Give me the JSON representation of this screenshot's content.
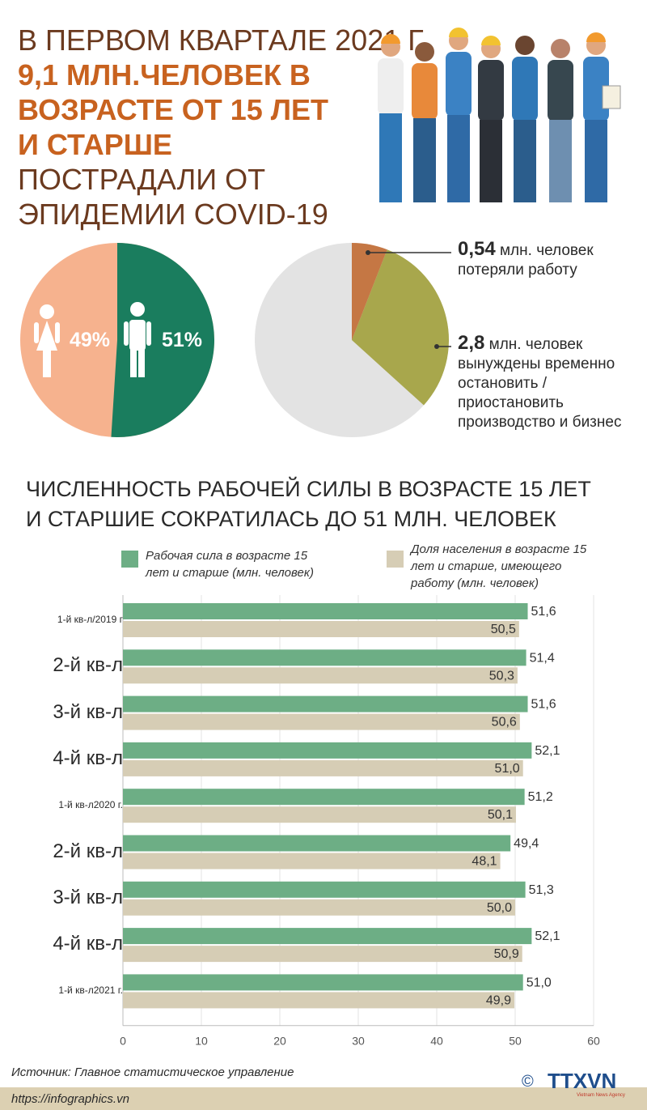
{
  "header": {
    "line1": "В ПЕРВОМ КВАРТАЛЕ 2021 Г.",
    "line2": "9,1 МЛН.ЧЕЛОВЕК В",
    "line3": "ВОЗРАСТЕ ОТ 15 ЛЕТ",
    "line4": "И СТАРШЕ",
    "line5": "ПОСТРАДАЛИ ОТ",
    "line6": "ЭПИДЕМИИ COVID-19"
  },
  "gender": {
    "female": "49%",
    "male": "51%",
    "female_color": "#f6b28e",
    "male_color": "#1a7d5e"
  },
  "impact": {
    "lost_value": "0,54",
    "lost_line1": " млн. человек",
    "lost_line2": "потеряли работу",
    "suspend_value": "2,8",
    "suspend_line1": " млн. человек",
    "suspend_line2": "вынуждены временно",
    "suspend_line3": "остановить /",
    "suspend_line4": "приостановить",
    "suspend_line5": "производство и бизнес",
    "colors": {
      "lost": "#c57744",
      "suspend": "#a8a74c",
      "rest": "#e3e3e3"
    }
  },
  "chart_title": {
    "line1": "ЧИСЛЕННОСТЬ РАБОЧЕЙ СИЛЫ В ВОЗРАСТЕ 15 ЛЕТ",
    "line2": "И СТАРШИЕ СОКРАТИЛАСЬ ДО 51 МЛН. ЧЕЛОВЕК"
  },
  "legend": {
    "a1": "Рабочая сила в возрасте 15",
    "a2": "лет и старше (млн. человек)",
    "b1": "Доля населения в возрасте 15",
    "b2": "лет и старше, имеющего",
    "b3": "работу (млн. человек)"
  },
  "chart_data": {
    "type": "bar",
    "orientation": "horizontal",
    "categories": [
      "1-й кв-л/2019 г",
      "2-й кв-л",
      "3-й кв-л",
      "4-й кв-л",
      "1-й кв-л2020 г.",
      "2-й кв-л",
      "3-й кв-л",
      "4-й кв-л",
      "1-й кв-л2021 г."
    ],
    "series": [
      {
        "name": "Рабочая сила в возрасте 15 лет и старше (млн. человек)",
        "color": "#6dae85",
        "values": [
          51.6,
          51.4,
          51.6,
          52.1,
          51.2,
          49.4,
          51.3,
          52.1,
          51.0
        ],
        "labels": [
          "51,6",
          "51,4",
          "51,6",
          "52,1",
          "51,2",
          "49,4",
          "51,3",
          "52,1",
          "51,0"
        ]
      },
      {
        "name": "Доля населения в возрасте 15 лет и старше, имеющего работу (млн. человек)",
        "color": "#d6cdb5",
        "values": [
          50.5,
          50.3,
          50.6,
          51.0,
          50.1,
          48.1,
          50.0,
          50.9,
          49.9
        ],
        "labels": [
          "50,5",
          "50,3",
          "50,6",
          "51,0",
          "50,1",
          "48,1",
          "50,0",
          "50,9",
          "49,9"
        ]
      }
    ],
    "xlim": [
      0,
      60
    ],
    "xticks": [
      "0",
      "10",
      "20",
      "30",
      "40",
      "50",
      "60"
    ],
    "grid": true,
    "legend_position": "top"
  },
  "source": "Источник:  Главное статистическое управление",
  "footer_url": "https://infographics.vn",
  "logo": {
    "text": "TTXVN",
    "sub": "Vietnam News Agency",
    "copyright": "©"
  }
}
